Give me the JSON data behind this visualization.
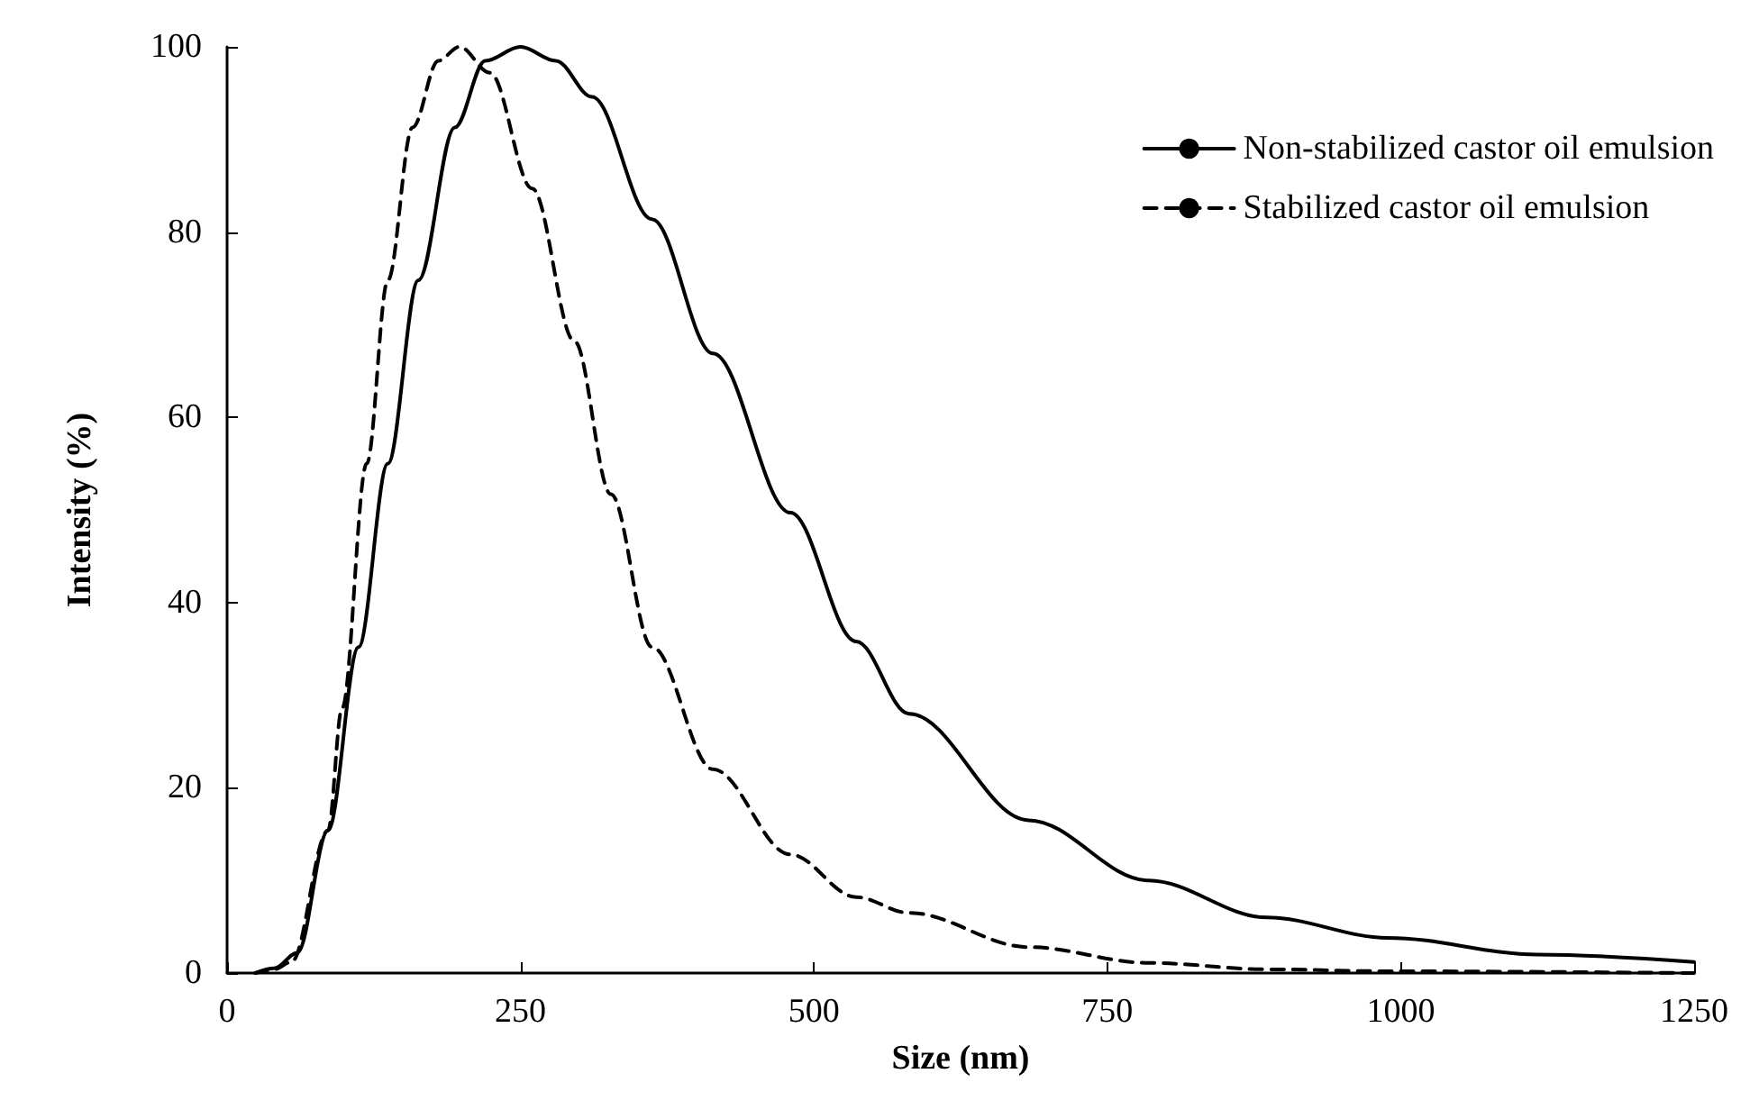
{
  "chart_data": {
    "type": "line",
    "xlabel": "Size (nm)",
    "ylabel": "Intensity (%)",
    "xlim": [
      0,
      1250
    ],
    "xticks": [
      0,
      250,
      500,
      750,
      1000,
      1250
    ],
    "ylim": [
      0,
      100
    ],
    "yticks": [
      0,
      20,
      40,
      60,
      80,
      100
    ],
    "grid": false,
    "legend": "top right",
    "marker": "none",
    "series": [
      {
        "name": "Non-stabilized castor oil emulsion",
        "color": "#000000",
        "line_style": "solid",
        "x": [
          24,
          40,
          60,
          86,
          112,
          137,
          163,
          194,
          220,
          250,
          280,
          311,
          362,
          414,
          480,
          536,
          581,
          683,
          785,
          886,
          989,
          1117,
          1250
        ],
        "values": [
          0,
          0.5,
          2.2,
          15.4,
          35.2,
          55,
          74.8,
          91.3,
          98.5,
          100,
          98.5,
          94.6,
          81.4,
          66.9,
          49.7,
          35.8,
          28,
          16.5,
          10,
          6,
          3.8,
          2,
          1.2
        ]
      },
      {
        "name": "Stabilized castor oil emulsion",
        "color": "#000000",
        "line_style": "dashed",
        "x": [
          24,
          40,
          55,
          86,
          98,
          119,
          137,
          158,
          180,
          198,
          224,
          260,
          296,
          327,
          362,
          414,
          480,
          536,
          581,
          683,
          785,
          886,
          989,
          1250
        ],
        "values": [
          0,
          0.4,
          1.2,
          15.4,
          28.6,
          55,
          74.8,
          91.3,
          98.5,
          100,
          97.2,
          84.7,
          68.2,
          51.7,
          35.2,
          22,
          12.8,
          8.2,
          6.5,
          2.8,
          1.1,
          0.4,
          0.2,
          0
        ]
      }
    ]
  }
}
